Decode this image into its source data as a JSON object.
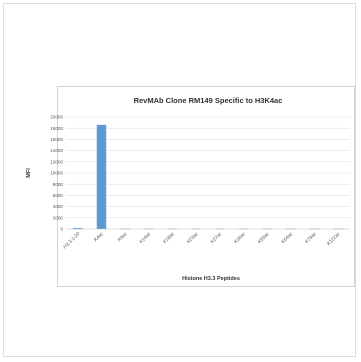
{
  "chart_data": {
    "type": "bar",
    "title": "RevMAb Clone RM149 Specific to H3K4ac",
    "xlabel": "Histone H3.3 Peptides",
    "ylabel": "MFI",
    "ylim": [
      0,
      20000
    ],
    "yticks": [
      0,
      2000,
      4000,
      6000,
      8000,
      10000,
      12000,
      14000,
      16000,
      18000,
      20000
    ],
    "grid": true,
    "legend": "none",
    "categories": [
      "H3.3 1-20",
      "K4ac",
      "K9ac",
      "K14ac",
      "K18ac",
      "K23ac",
      "K27ac",
      "K36ac",
      "K56ac",
      "K64ac",
      "K79ac",
      "K122ac"
    ],
    "values": [
      180,
      18600,
      60,
      60,
      60,
      60,
      60,
      60,
      60,
      60,
      60,
      60
    ],
    "bar_color": "#5b9bd5"
  }
}
